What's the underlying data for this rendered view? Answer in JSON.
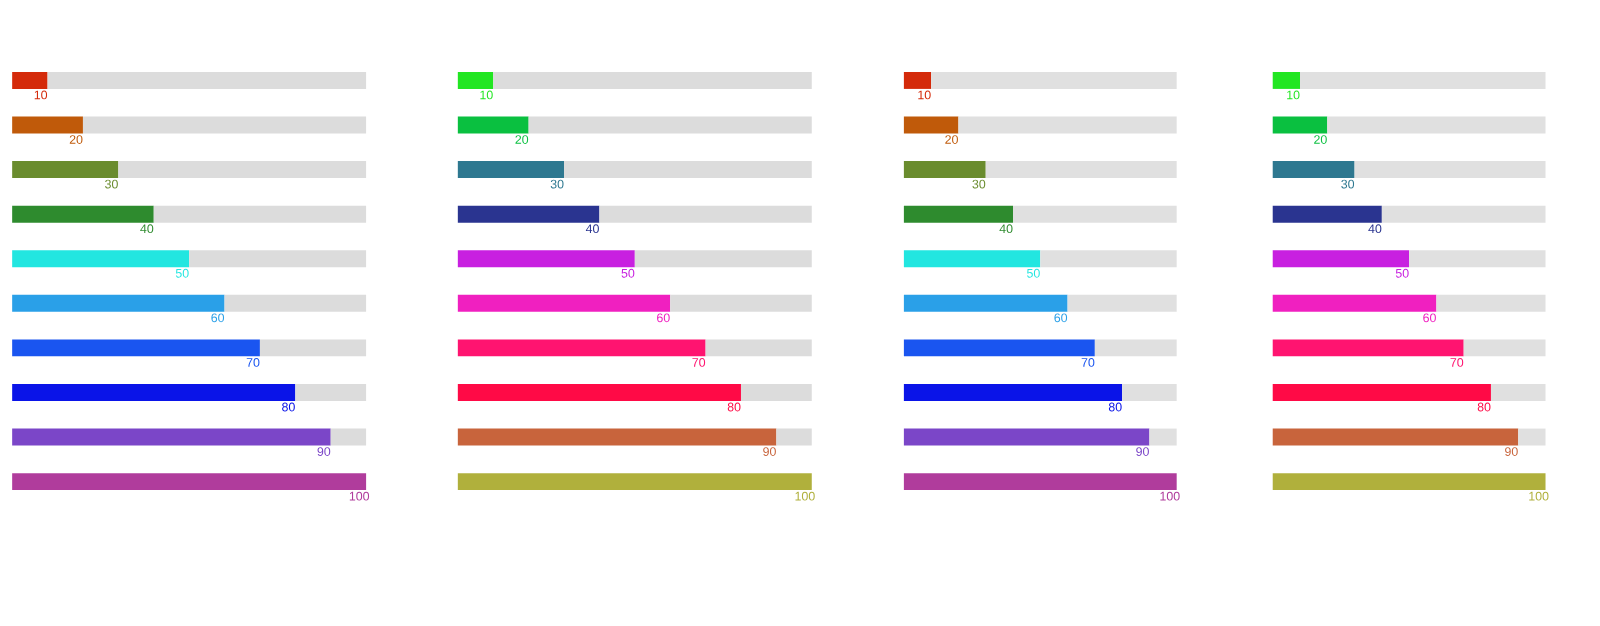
{
  "chart_data": [
    {
      "type": "bar",
      "orientation": "horizontal",
      "stacked": true,
      "xlim": [
        0,
        100
      ],
      "categories": [
        null,
        null,
        null,
        null,
        null,
        null,
        null,
        null,
        null,
        null
      ],
      "series": [
        {
          "colors": [
            "#d42a0a",
            "#c05a0a",
            "#6a8c2e",
            "#2e8b2e",
            "#22e6e0",
            "#2aa0e8",
            "#1a55f0",
            "#0a14e8",
            "#7b46c8",
            "#b03c9c"
          ],
          "values": [
            10,
            20,
            30,
            40,
            50,
            60,
            70,
            80,
            90,
            100
          ],
          "value_labels": [
            "10",
            "20",
            "30",
            "40",
            "50",
            "60",
            "70",
            "80",
            "90",
            "100"
          ]
        },
        {
          "color": "#dcdcdc",
          "values": [
            90,
            80,
            70,
            60,
            50,
            40,
            30,
            20,
            10,
            0
          ]
        }
      ]
    },
    {
      "type": "bar",
      "orientation": "horizontal",
      "stacked": true,
      "xlim": [
        0,
        100
      ],
      "categories": [
        null,
        null,
        null,
        null,
        null,
        null,
        null,
        null,
        null,
        null
      ],
      "series": [
        {
          "colors": [
            "#22e622",
            "#0ac040",
            "#2e7890",
            "#2a3490",
            "#c820e0",
            "#f020c0",
            "#ff1470",
            "#ff0a46",
            "#c8643c",
            "#b0b03c"
          ],
          "values": [
            10,
            20,
            30,
            40,
            50,
            60,
            70,
            80,
            90,
            100
          ],
          "value_labels": [
            "10",
            "20",
            "30",
            "40",
            "50",
            "60",
            "70",
            "80",
            "90",
            "100"
          ]
        },
        {
          "color": "#dcdcdc",
          "values": [
            90,
            80,
            70,
            60,
            50,
            40,
            30,
            20,
            10,
            0
          ]
        }
      ]
    },
    {
      "type": "bar",
      "orientation": "horizontal",
      "stacked": true,
      "xlim": [
        0,
        100
      ],
      "categories": [
        null,
        null,
        null,
        null,
        null,
        null,
        null,
        null,
        null,
        null
      ],
      "series": [
        {
          "colors": [
            "#d42a0a",
            "#c05a0a",
            "#6a8c2e",
            "#2e8b2e",
            "#22e6e0",
            "#2aa0e8",
            "#1a55f0",
            "#0a14e8",
            "#7b46c8",
            "#b03c9c"
          ],
          "values": [
            10,
            20,
            30,
            40,
            50,
            60,
            70,
            80,
            90,
            100
          ],
          "value_labels": [
            "10",
            "20",
            "30",
            "40",
            "50",
            "60",
            "70",
            "80",
            "90",
            "100"
          ]
        },
        {
          "color": "#e0e0e0",
          "values": [
            90,
            80,
            70,
            60,
            50,
            40,
            30,
            20,
            10,
            0
          ]
        }
      ]
    },
    {
      "type": "bar",
      "orientation": "horizontal",
      "stacked": true,
      "xlim": [
        0,
        100
      ],
      "categories": [
        null,
        null,
        null,
        null,
        null,
        null,
        null,
        null,
        null,
        null
      ],
      "series": [
        {
          "colors": [
            "#22e622",
            "#0ac040",
            "#2e7890",
            "#2a3490",
            "#c820e0",
            "#f020c0",
            "#ff1470",
            "#ff0a46",
            "#c8643c",
            "#b0b03c"
          ],
          "values": [
            10,
            20,
            30,
            40,
            50,
            60,
            70,
            80,
            90,
            100
          ],
          "value_labels": [
            "10",
            "20",
            "30",
            "40",
            "50",
            "60",
            "70",
            "80",
            "90",
            "100"
          ]
        },
        {
          "color": "#e0e0e0",
          "values": [
            90,
            80,
            70,
            60,
            50,
            40,
            30,
            20,
            10,
            0
          ]
        }
      ]
    }
  ]
}
